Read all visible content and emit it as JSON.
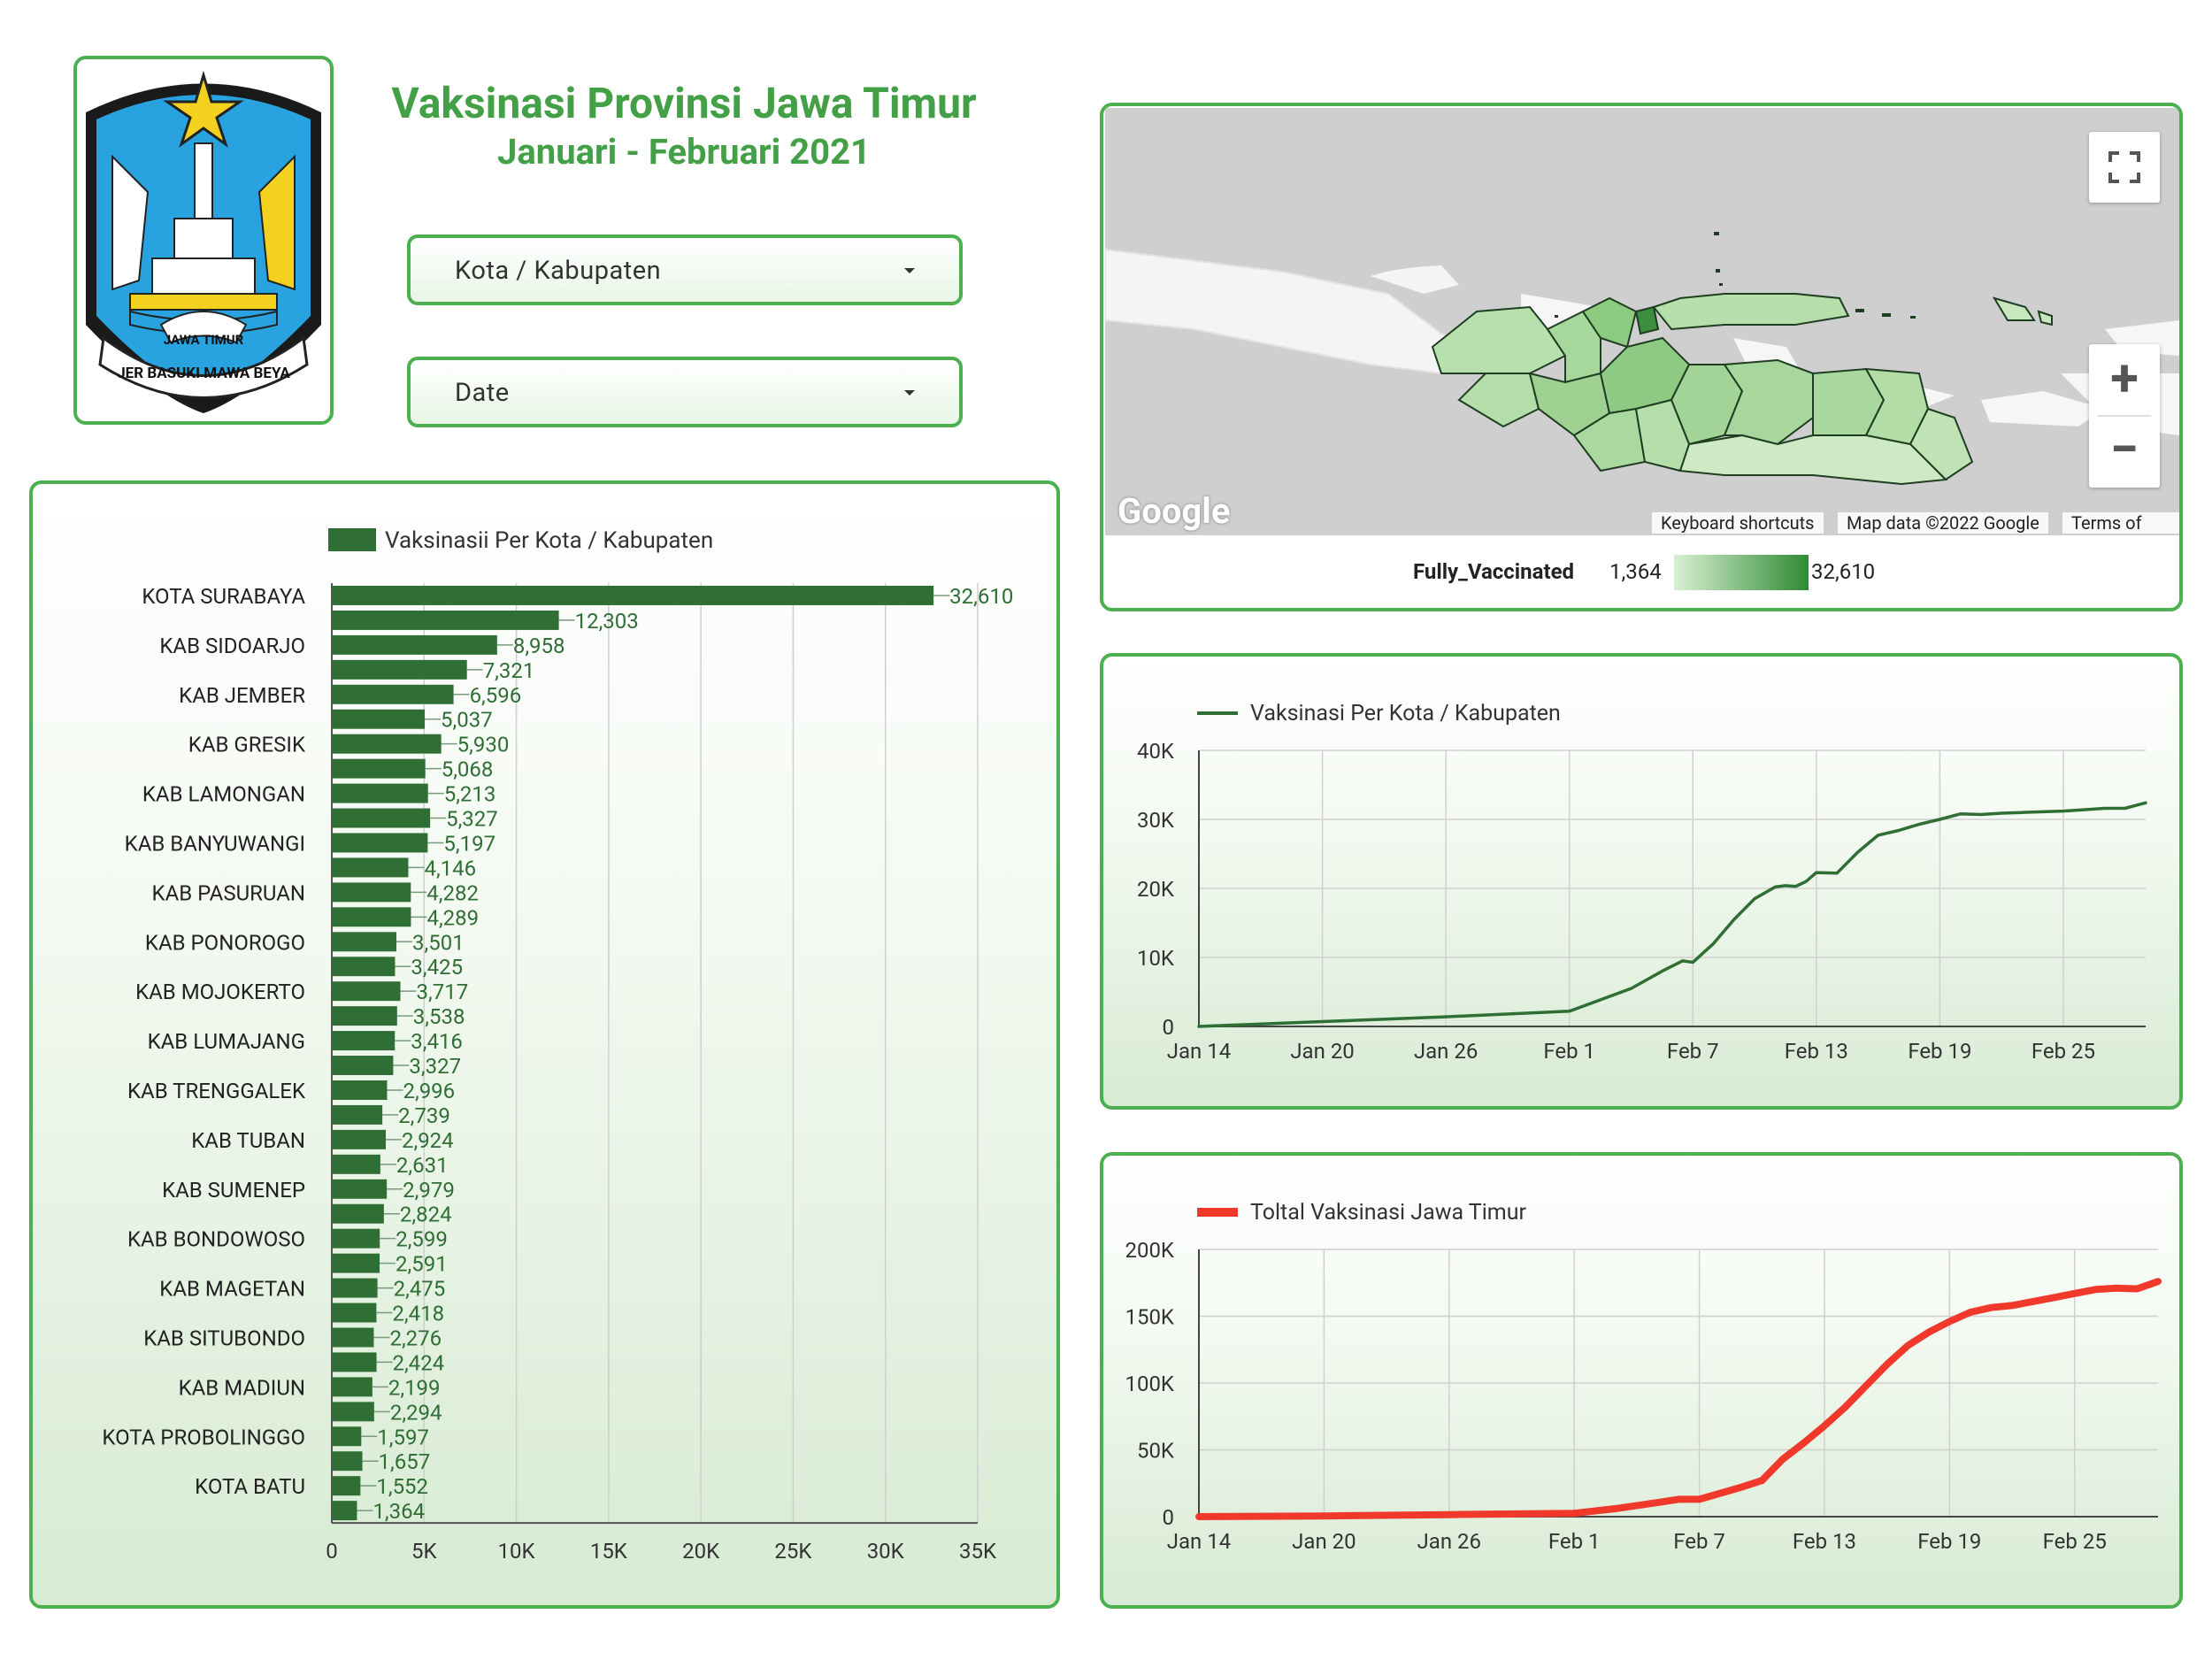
{
  "header": {
    "title": "Vaksinasi Provinsi Jawa Timur",
    "subtitle": "Januari - Februari 2021",
    "logo_text_top": "JAWA TIMUR",
    "logo_text_bottom": "JER BASUKI MAWA BEYA"
  },
  "filters": {
    "city_label": "Kota / Kabupaten",
    "date_label": "Date"
  },
  "map": {
    "google_logo": "Google",
    "keyboard_shortcuts": "Keyboard shortcuts",
    "map_data": "Map data ©2022 Google",
    "terms": "Terms of Use",
    "zoom_in": "+",
    "zoom_out": "−",
    "legend_metric": "Fully_Vaccinated",
    "legend_min": "1,364",
    "legend_max": "32,610",
    "color_light": "#d9f0d3",
    "color_dark": "#2e8b34"
  },
  "chart_data": [
    {
      "type": "bar",
      "orientation": "horizontal",
      "legend": "Vaksinasii Per Kota / Kabupaten",
      "color": "#2f6e34",
      "categories": [
        "KOTA SURABAYA",
        "",
        "KAB SIDOARJO",
        "",
        "KAB JEMBER",
        "",
        "KAB GRESIK",
        "",
        "KAB LAMONGAN",
        "",
        "KAB BANYUWANGI",
        "",
        "KAB PASURUAN",
        "",
        "KAB PONOROGO",
        "",
        "KAB MOJOKERTO",
        "",
        "KAB LUMAJANG",
        "",
        "KAB TRENGGALEK",
        "",
        "KAB TUBAN",
        "",
        "KAB SUMENEP",
        "",
        "KAB BONDOWOSO",
        "",
        "KAB MAGETAN",
        "",
        "KAB SITUBONDO",
        "",
        "KAB MADIUN",
        "",
        "KOTA PROBOLINGGO",
        "",
        "KOTA BATU",
        ""
      ],
      "values": [
        32610,
        12303,
        8958,
        7321,
        6596,
        5037,
        5930,
        5068,
        5213,
        5327,
        5197,
        4146,
        4282,
        4289,
        3501,
        3425,
        3717,
        3538,
        3416,
        3327,
        2996,
        2739,
        2924,
        2631,
        2979,
        2824,
        2599,
        2591,
        2475,
        2418,
        2276,
        2424,
        2199,
        2294,
        1597,
        1657,
        1552,
        1364
      ],
      "value_labels": [
        "32,610",
        "12,303",
        "8,958",
        "7,321",
        "6,596",
        "5,037",
        "5,930",
        "5,068",
        "5,213",
        "5,327",
        "5,197",
        "4,146",
        "4,282",
        "4,289",
        "3,501",
        "3,425",
        "3,717",
        "3,538",
        "3,416",
        "3,327",
        "2,996",
        "2,739",
        "2,924",
        "2,631",
        "2,979",
        "2,824",
        "2,599",
        "2,591",
        "2,475",
        "2,418",
        "2,276",
        "2,424",
        "2,199",
        "2,294",
        "1,597",
        "1,657",
        "1,552",
        "1,364"
      ],
      "xlim": [
        0,
        35000
      ],
      "xticks": [
        0,
        5000,
        10000,
        15000,
        20000,
        25000,
        30000,
        35000
      ],
      "xtick_labels": [
        "0",
        "5K",
        "10K",
        "15K",
        "20K",
        "25K",
        "30K",
        "35K"
      ]
    },
    {
      "type": "line",
      "legend": "Vaksinasi Per Kota / Kabupaten",
      "color": "#2f6e34",
      "x_tick_labels": [
        "Jan 14",
        "Jan 20",
        "Jan 26",
        "Feb 1",
        "Feb 7",
        "Feb 13",
        "Feb 19",
        "Feb 25"
      ],
      "x_tick_days": [
        0,
        6,
        12,
        18,
        24,
        30,
        36,
        42
      ],
      "x_range_days": [
        0,
        46
      ],
      "ylim": [
        0,
        40000
      ],
      "yticks": [
        0,
        10000,
        20000,
        30000,
        40000
      ],
      "ytick_labels": [
        "0",
        "10K",
        "20K",
        "30K",
        "40K"
      ],
      "x": [
        0,
        6,
        12,
        18,
        21,
        22.5,
        23.5,
        24,
        25,
        26,
        27,
        28,
        28.5,
        29,
        29.5,
        30,
        31,
        32,
        33,
        34,
        35,
        36,
        37,
        38,
        39,
        40,
        41,
        42,
        43,
        44,
        45,
        46
      ],
      "y": [
        0,
        700,
        1400,
        2200,
        5500,
        8000,
        9500,
        9300,
        12000,
        15500,
        18500,
        20200,
        20400,
        20300,
        21000,
        22300,
        22200,
        25200,
        27700,
        28400,
        29300,
        30000,
        30800,
        30700,
        30900,
        31000,
        31100,
        31200,
        31400,
        31600,
        31600,
        32400
      ]
    },
    {
      "type": "line",
      "legend": "Toltal Vaksinasi Jawa Timur",
      "color": "#f0392b",
      "x_tick_labels": [
        "Jan 14",
        "Jan 20",
        "Jan 26",
        "Feb 1",
        "Feb 7",
        "Feb 13",
        "Feb 19",
        "Feb 25"
      ],
      "x_tick_days": [
        0,
        6,
        12,
        18,
        24,
        30,
        36,
        42
      ],
      "x_range_days": [
        0,
        46
      ],
      "ylim": [
        0,
        200000
      ],
      "yticks": [
        0,
        50000,
        100000,
        150000,
        200000
      ],
      "ytick_labels": [
        "0",
        "50K",
        "100K",
        "150K",
        "200K"
      ],
      "x": [
        0,
        6,
        12,
        18,
        20,
        22,
        23,
        24,
        25,
        26,
        27,
        28,
        29,
        30,
        31,
        32,
        33,
        34,
        35,
        36,
        37,
        38,
        39,
        40,
        41,
        42,
        43,
        44,
        45,
        46
      ],
      "y": [
        0,
        500,
        1500,
        2500,
        6000,
        10500,
        13000,
        13000,
        17500,
        22000,
        27000,
        43000,
        55000,
        68000,
        82000,
        98000,
        114000,
        128000,
        138000,
        146000,
        153000,
        156500,
        158000,
        161000,
        164000,
        167000,
        170000,
        171000,
        170500,
        176000
      ]
    }
  ]
}
